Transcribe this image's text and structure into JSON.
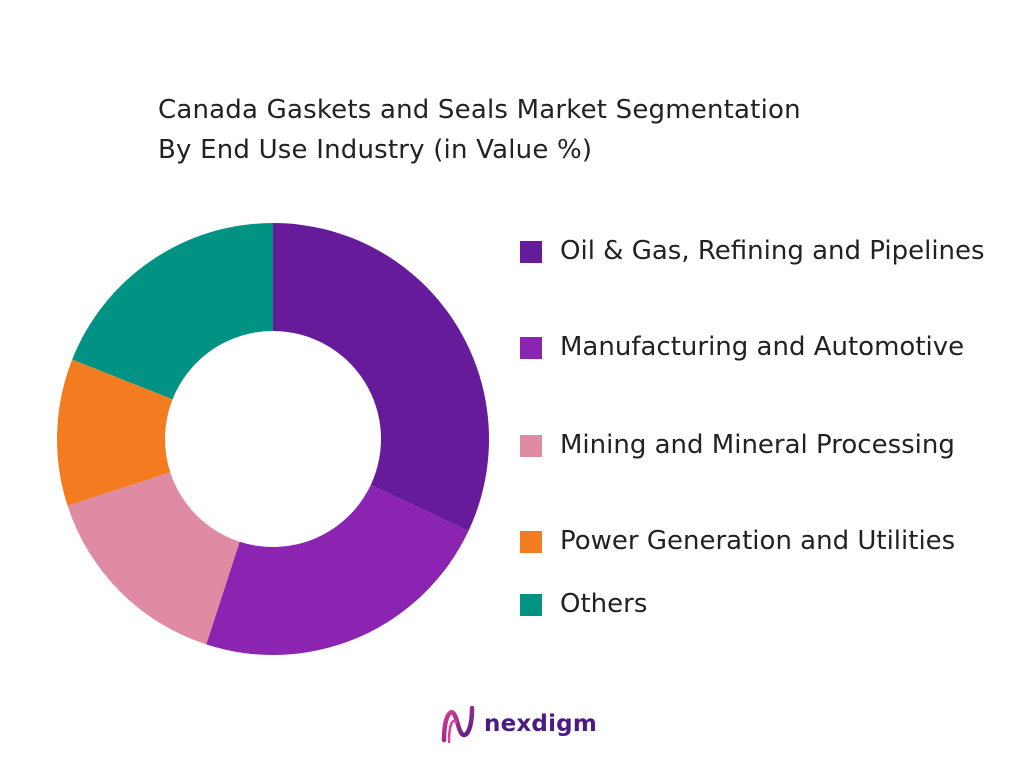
{
  "chart_data": {
    "type": "pie",
    "title_lines": [
      "Canada Gaskets and Seals Market Segmentation",
      "By End Use Industry (in Value %)"
    ],
    "categories": [
      "Oil & Gas, Refining and Pipelines",
      "Manufacturing and Automotive",
      "Mining and Mineral Processing",
      "Power Generation and Utilities",
      "Others"
    ],
    "values": [
      32,
      23,
      15,
      11,
      19
    ],
    "unit": "%",
    "colors": [
      "#661b9b",
      "#8b24b0",
      "#e08ba4",
      "#f47c20",
      "#009282"
    ],
    "donut": true,
    "legend_position": "right"
  },
  "brand": {
    "name": "nexdigm",
    "color": "#4b1a82"
  }
}
